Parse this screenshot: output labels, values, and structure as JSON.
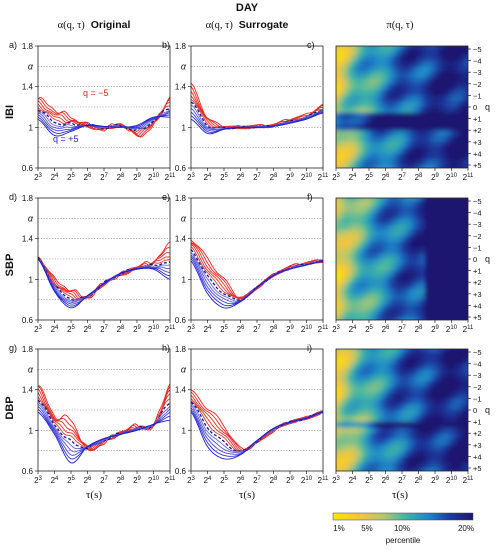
{
  "figure": {
    "super_title": "DAY",
    "col_titles": [
      {
        "sym": "α(q, τ)",
        "word": "Original"
      },
      {
        "sym": "α(q, τ)",
        "word": "Surrogate"
      },
      {
        "sym": "π(q, τ)",
        "word": ""
      }
    ],
    "row_labels": [
      "IBI",
      "SBP",
      "DBP"
    ],
    "panel_letters": [
      "a)",
      "b)",
      "c)",
      "d)",
      "e)",
      "f)",
      "g)",
      "h)",
      "i)"
    ],
    "xlabel": "τ(s)",
    "alpha_symbol": "α",
    "q_min_label": "q = −5",
    "q_max_label": "q = +5"
  },
  "chart_data": {
    "type": "line",
    "x_ticks": [
      "2^3",
      "2^4",
      "2^5",
      "2^6",
      "2^7",
      "2^8",
      "2^9",
      "2^10",
      "2^11"
    ],
    "x_tick_base": "2",
    "x_tick_exponents": [
      "3",
      "4",
      "5",
      "6",
      "7",
      "8",
      "9",
      "10",
      "11"
    ],
    "y_ticks": [
      "0.6",
      "1",
      "1.4",
      "1.8"
    ],
    "ylim": [
      0.6,
      1.8
    ],
    "xlim_log2": [
      3,
      11
    ],
    "q_values": [
      -5,
      -4,
      -3,
      -2,
      -1,
      0,
      1,
      2,
      3,
      4,
      5
    ],
    "q_tick_labels": [
      "−5",
      "−4",
      "−3",
      "−2",
      "−1",
      "0",
      "+1",
      "+2",
      "+3",
      "+4",
      "+5"
    ],
    "q_axis_label": "q",
    "colors": {
      "negative_q": "#e0201b",
      "positive_q": "#1a1ad6",
      "q0": "#0a1a8c",
      "grid": "#7a7a7a"
    },
    "colorbar": {
      "ticks": [
        "1%",
        "5%",
        "10%",
        "20%"
      ],
      "label": "percentile",
      "stops": [
        "#f6e800",
        "#f6c53a",
        "#b5c870",
        "#3fb5a5",
        "#1f86c9",
        "#1a3aa0",
        "#1c1670"
      ]
    },
    "panels": [
      {
        "id": "a",
        "letter_index": 0,
        "row": 0,
        "kind": "alpha",
        "profiles": {
          "neg_end": [
            1.28,
            1.18,
            1.1,
            1.02,
            0.98,
            1.03,
            0.92,
            1.02,
            1.3
          ],
          "pos_end": [
            1.08,
            0.92,
            0.96,
            1.02,
            1.01,
            1.0,
            1.02,
            1.1,
            1.1
          ]
        }
      },
      {
        "id": "b",
        "letter_index": 1,
        "row": 0,
        "kind": "alpha",
        "profiles": {
          "neg_end": [
            1.42,
            1.1,
            1.01,
            1.0,
            1.01,
            1.02,
            1.08,
            1.12,
            1.22
          ],
          "pos_end": [
            1.08,
            0.94,
            0.98,
            1.0,
            1.0,
            1.01,
            1.04,
            1.08,
            1.14
          ]
        }
      },
      {
        "id": "c",
        "letter_index": 2,
        "row": 0,
        "kind": "heatmap"
      },
      {
        "id": "d",
        "letter_index": 3,
        "row": 1,
        "kind": "alpha",
        "profiles": {
          "neg_end": [
            1.22,
            1.0,
            0.9,
            0.82,
            0.96,
            1.04,
            1.12,
            1.18,
            1.34
          ],
          "pos_end": [
            1.2,
            0.88,
            0.72,
            0.84,
            0.96,
            1.06,
            1.1,
            1.1,
            1.0
          ]
        }
      },
      {
        "id": "e",
        "letter_index": 4,
        "row": 1,
        "kind": "alpha",
        "profiles": {
          "neg_end": [
            1.4,
            1.2,
            1.0,
            0.82,
            0.92,
            1.04,
            1.12,
            1.16,
            1.18
          ],
          "pos_end": [
            1.18,
            0.86,
            0.72,
            0.78,
            0.92,
            1.04,
            1.1,
            1.14,
            1.18
          ]
        }
      },
      {
        "id": "f",
        "letter_index": 5,
        "row": 1,
        "kind": "heatmap"
      },
      {
        "id": "g",
        "letter_index": 6,
        "row": 2,
        "kind": "alpha",
        "profiles": {
          "neg_end": [
            1.44,
            1.15,
            1.1,
            0.82,
            0.88,
            0.98,
            1.04,
            1.04,
            1.46
          ],
          "pos_end": [
            1.18,
            0.96,
            0.68,
            0.84,
            0.92,
            0.96,
            1.0,
            1.06,
            1.1
          ]
        }
      },
      {
        "id": "h",
        "letter_index": 7,
        "row": 2,
        "kind": "alpha",
        "profiles": {
          "neg_end": [
            1.38,
            1.22,
            1.05,
            0.82,
            0.88,
            1.0,
            1.08,
            1.12,
            1.18
          ],
          "pos_end": [
            1.18,
            0.84,
            0.72,
            0.76,
            0.9,
            1.02,
            1.08,
            1.12,
            1.18
          ]
        }
      },
      {
        "id": "i",
        "letter_index": 8,
        "row": 2,
        "kind": "heatmap"
      }
    ]
  }
}
